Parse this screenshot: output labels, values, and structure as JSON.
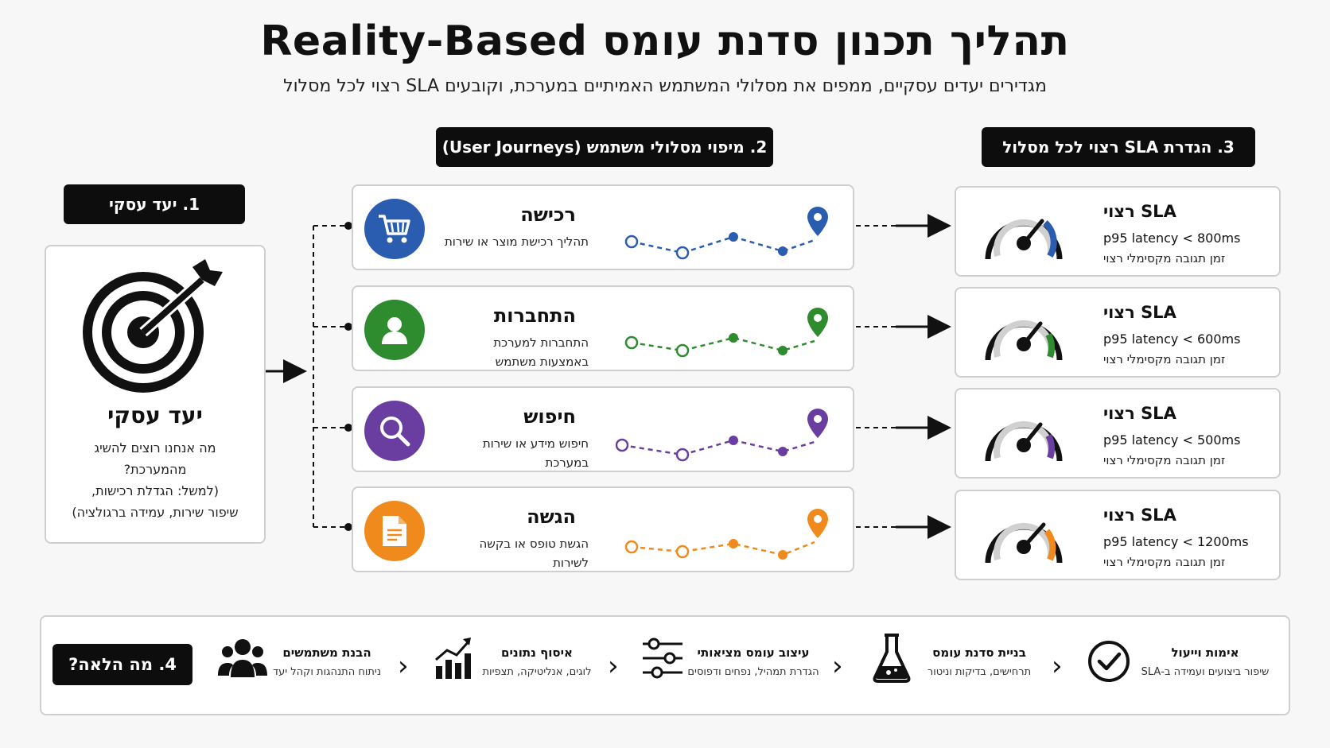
{
  "header": {
    "title": "תהליך תכנון סדנת עומס Reality-Based",
    "subtitle": "מגדירים יעדים עסקיים, ממפים את מסלולי המשתמש האמיתיים במערכת, וקובעים SLA רצוי לכל מסלול"
  },
  "sections": {
    "goal_label": "1. יעד עסקי",
    "journeys_label": "2. מיפוי מסלולי משתמש (User Journeys)",
    "sla_label": "3. הגדרת SLA רצוי לכל מסלול",
    "next_label": "4. מה הלאה?"
  },
  "goal": {
    "heading": "יעד עסקי",
    "desc_line1": "מה אנחנו רוצים להשיג",
    "desc_line2": "מהמערכת?",
    "desc_line3": "(למשל: הגדלת רכישות,",
    "desc_line4": "שיפור שירות, עמידה ברגולציה)",
    "icon": "target-icon"
  },
  "journeys": [
    {
      "title": "רכישה",
      "desc1": "תהליך רכישת מוצר או שירות",
      "desc2": "",
      "color": "#2a5db0",
      "icon": "cart-icon"
    },
    {
      "title": "התחברות",
      "desc1": "התחברות למערכת",
      "desc2": "באמצעות משתמש",
      "color": "#2e8b2e",
      "icon": "user-icon"
    },
    {
      "title": "חיפוש",
      "desc1": "חיפוש מידע או שירות",
      "desc2": "במערכת",
      "color": "#6a3ea1",
      "icon": "search-icon"
    },
    {
      "title": "הגשה",
      "desc1": "הגשת טופס או בקשה",
      "desc2": "לשירות",
      "color": "#f08a1c",
      "icon": "document-icon"
    }
  ],
  "slas": [
    {
      "title": "SLA רצוי",
      "metric": "p95 latency < 800ms",
      "desc": "זמן תגובה מקסימלי רצוי",
      "color": "#2a5db0",
      "icon": "gauge-icon"
    },
    {
      "title": "SLA רצוי",
      "metric": "p95 latency < 600ms",
      "desc": "זמן תגובה מקסימלי רצוי",
      "color": "#2e8b2e",
      "icon": "gauge-icon"
    },
    {
      "title": "SLA רצוי",
      "metric": "p95 latency < 500ms",
      "desc": "זמן תגובה מקסימלי רצוי",
      "color": "#6a3ea1",
      "icon": "gauge-icon"
    },
    {
      "title": "SLA רצוי",
      "metric": "p95 latency < 1200ms",
      "desc": "זמן תגובה מקסימלי רצוי",
      "color": "#f08a1c",
      "icon": "gauge-icon"
    }
  ],
  "next_steps": [
    {
      "title": "הבנת משתמשים",
      "desc": "ניתוח התנהגות וקהל יעד",
      "icon": "users-icon"
    },
    {
      "title": "איסוף נתונים",
      "desc": "לוגים, אנליטיקה, תצפיות",
      "icon": "chart-up-icon"
    },
    {
      "title": "עיצוב עומס מציאותי",
      "desc": "הגדרת תמהיל, נפחים ודפוסים",
      "icon": "sliders-icon"
    },
    {
      "title": "בניית סדנת עומס",
      "desc": "תרחישים, בדיקות וניטור",
      "icon": "flask-icon"
    },
    {
      "title": "אימות וייעול",
      "desc": "שיפור ביצועים ועמידה ב-SLA",
      "icon": "check-circle-icon"
    }
  ]
}
